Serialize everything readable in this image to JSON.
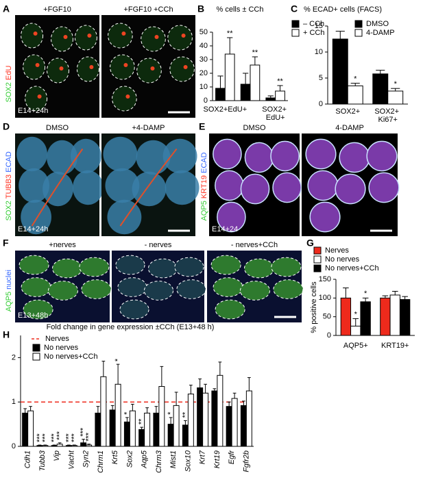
{
  "images": [
    {
      "label": "A",
      "channels": [
        {
          "text": "SOX2",
          "color": "#33cc33"
        },
        {
          "text": "EdU",
          "color": "#ff3322"
        }
      ],
      "panels": [
        {
          "title": "+FGF10"
        },
        {
          "title": "+FGF10 +CCh"
        }
      ],
      "stage": "E14+24h"
    },
    {
      "label": "D",
      "channels": [
        {
          "text": "SOX2",
          "color": "#33cc33"
        },
        {
          "text": "TUBB3",
          "color": "#ff3322"
        },
        {
          "text": "ECAD",
          "color": "#3366ff"
        }
      ],
      "panels": [
        {
          "title": "DMSO"
        },
        {
          "title": "+4-DAMP"
        }
      ],
      "stage": "E14+24h"
    },
    {
      "label": "E",
      "channels": [
        {
          "text": "AQP5",
          "color": "#33cc33"
        },
        {
          "text": "KRT19",
          "color": "#ff3322"
        },
        {
          "text": "ECAD",
          "color": "#3366ff"
        }
      ],
      "panels": [
        {
          "title": "DMSO"
        },
        {
          "title": "4-DAMP"
        }
      ],
      "stage": "E14+24"
    },
    {
      "label": "F",
      "channels": [
        {
          "text": "AQP5",
          "color": "#33cc33"
        },
        {
          "text": "nuclei",
          "color": "#3366ff"
        }
      ],
      "panels": [
        {
          "title": "+nerves"
        },
        {
          "title": "- nerves"
        },
        {
          "title": "- nerves+CCh"
        }
      ],
      "stage": "E13+48h"
    }
  ],
  "chart_data": [
    {
      "type": "bar",
      "label": "B",
      "title": "% cells ± CCh",
      "categories": [
        "SOX2+EdU+",
        null,
        "SOX2+ EdU+"
      ],
      "series": [
        {
          "name": "– CCh",
          "color": "#000000",
          "values": [
            9,
            12,
            2
          ],
          "errors": [
            9,
            8,
            1.5
          ],
          "significance": [
            null,
            null,
            null
          ]
        },
        {
          "name": "+ CCh",
          "color": "#ffffff",
          "values": [
            34,
            26,
            7
          ],
          "errors": [
            12,
            6,
            4
          ],
          "significance": [
            "**",
            "**",
            "**"
          ]
        }
      ],
      "ylim": [
        0,
        50
      ],
      "yticks": [
        0,
        10,
        20,
        30,
        40,
        50
      ]
    },
    {
      "type": "bar",
      "label": "C",
      "title": "% ECAD+ cells (FACS)",
      "categories": [
        "SOX2+",
        "SOX2+ Ki67+"
      ],
      "series": [
        {
          "name": "DMSO",
          "color": "#000000",
          "values": [
            12.5,
            5.8
          ],
          "errors": [
            1.5,
            0.7
          ],
          "significance": [
            null,
            null
          ]
        },
        {
          "name": "4-DAMP",
          "color": "#ffffff",
          "values": [
            3.5,
            2.5
          ],
          "errors": [
            0.5,
            0.5
          ],
          "significance": [
            "*",
            "*"
          ]
        }
      ],
      "ylim": [
        0,
        15
      ],
      "yticks": [
        0,
        5,
        10,
        15
      ]
    },
    {
      "type": "bar",
      "label": "G",
      "ylabel": "% positive cells",
      "categories": [
        "AQP5+",
        "KRT19+"
      ],
      "series": [
        {
          "name": "Nerves",
          "color": "#ee2a1c",
          "values": [
            100,
            100
          ],
          "errors": [
            27,
            6
          ],
          "significance": [
            null,
            null
          ]
        },
        {
          "name": "No nerves",
          "color": "#ffffff",
          "values": [
            25,
            108
          ],
          "errors": [
            20,
            10
          ],
          "significance": [
            "*",
            null
          ]
        },
        {
          "name": "No nerves+CCh",
          "color": "#000000",
          "values": [
            90,
            96
          ],
          "errors": [
            10,
            8
          ],
          "significance": [
            "*",
            null
          ]
        }
      ],
      "ylim": [
        0,
        150
      ],
      "yticks": [
        0,
        50,
        100,
        150
      ]
    },
    {
      "type": "bar",
      "label": "H",
      "title": "Fold change in gene expression ±CCh (E13+48 h)",
      "categories": [
        "Cdh1",
        "Tubb3",
        "Vip",
        "Vacht",
        "Syn2",
        "Chrm1",
        "Krt5",
        "Sox2",
        "Aqp5",
        "Chrm3",
        "Mist1",
        "Sox10",
        "Krt7",
        "Krt19",
        "Egfr",
        "Fgfr2b"
      ],
      "reference_line": {
        "name": "Nerves",
        "color": "#ee2a1c",
        "value": 1
      },
      "series": [
        {
          "name": "No nerves",
          "color": "#000000",
          "values": [
            0.75,
            0.02,
            0.02,
            0.02,
            0.08,
            0.75,
            0.82,
            0.55,
            0.38,
            0.75,
            0.5,
            0.48,
            1.32,
            1.25,
            0.9,
            0.92
          ],
          "errors": [
            0.1,
            0.01,
            0.01,
            0.01,
            0.08,
            0.15,
            0.1,
            0.1,
            0.05,
            0.15,
            0.15,
            0.1,
            0.2,
            0.05,
            0.1,
            0.1
          ],
          "significance": [
            null,
            "***",
            "***",
            "***",
            "***",
            null,
            null,
            "*",
            "**",
            null,
            "*",
            "**",
            null,
            null,
            null,
            null
          ]
        },
        {
          "name": "No nerves+CCh",
          "color": "#ffffff",
          "values": [
            0.8,
            0.02,
            0.05,
            0.02,
            0.03,
            1.57,
            1.4,
            0.8,
            0.75,
            1.35,
            0.92,
            1.18,
            1.2,
            1.6,
            1.08,
            1.25
          ],
          "errors": [
            0.1,
            0.01,
            0.03,
            0.01,
            0.02,
            0.35,
            0.45,
            0.15,
            0.12,
            0.45,
            0.3,
            0.2,
            0.2,
            0.3,
            0.12,
            0.3
          ],
          "significance": [
            null,
            "***",
            "***",
            "***",
            "***",
            null,
            "*",
            null,
            null,
            null,
            null,
            null,
            null,
            null,
            null,
            null
          ]
        }
      ],
      "ylim": [
        0,
        2.5
      ],
      "yticks": [
        0,
        1,
        2
      ]
    }
  ]
}
